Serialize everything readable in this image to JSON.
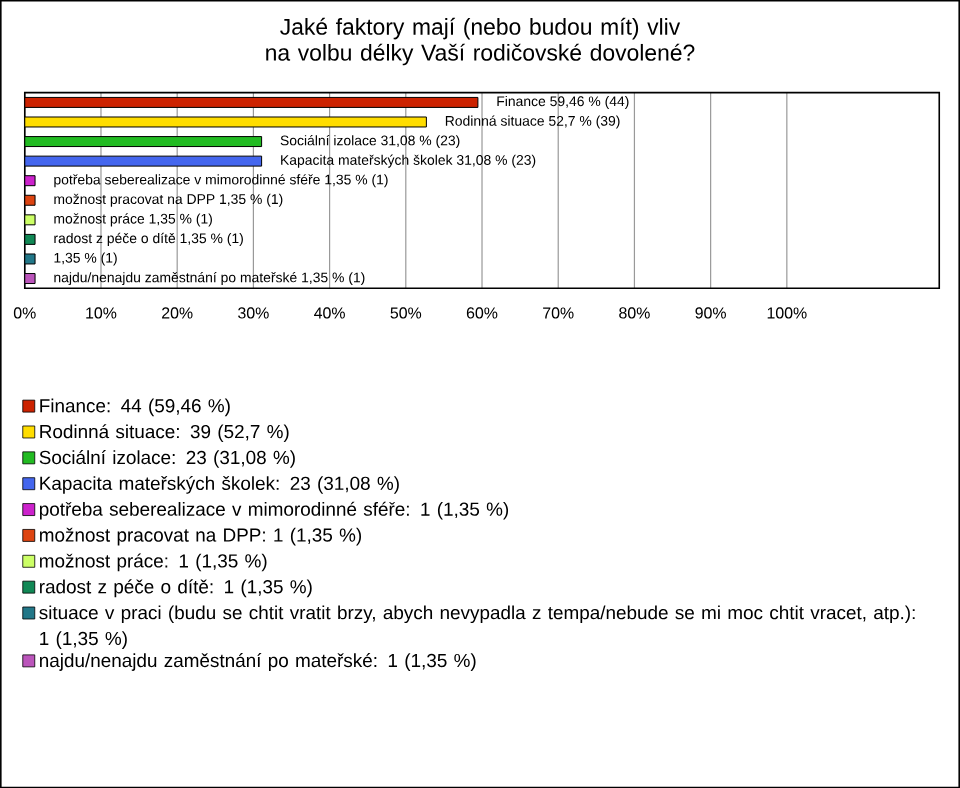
{
  "chart_data": {
    "type": "bar",
    "orientation": "horizontal",
    "title": "Jaké faktory mají (nebo budou mít) vliv na volbu délky Vaší rodičovské dovolené?",
    "categories": [
      null,
      null,
      null,
      null,
      null,
      null,
      null,
      null,
      null,
      null
    ],
    "series": [
      {
        "name": "Finance: 44 (59,46 %)",
        "color": "#cc2200",
        "values": [
          59.46,
          null,
          null,
          null,
          null,
          null,
          null,
          null,
          null,
          null
        ],
        "value_labels": [
          "Finance 59,46 % (44)",
          null,
          null,
          null,
          null,
          null,
          null,
          null,
          null,
          null
        ]
      },
      {
        "name": "Rodinná situace: 39 (52,7 %)",
        "color": "#ffdd00",
        "values": [
          null,
          52.7,
          null,
          null,
          null,
          null,
          null,
          null,
          null,
          null
        ],
        "value_labels": [
          null,
          "Rodinná situace 52,7 % (39)",
          null,
          null,
          null,
          null,
          null,
          null,
          null,
          null
        ]
      },
      {
        "name": "Sociální izolace: 23 (31,08 %)",
        "color": "#22bb22",
        "values": [
          null,
          null,
          31.08,
          null,
          null,
          null,
          null,
          null,
          null,
          null
        ],
        "value_labels": [
          null,
          null,
          "Sociální izolace 31,08 % (23)",
          null,
          null,
          null,
          null,
          null,
          null,
          null
        ]
      },
      {
        "name": "Kapacita mateřských školek: 23 (31,08 %)",
        "color": "#4466ee",
        "values": [
          null,
          null,
          null,
          31.08,
          null,
          null,
          null,
          null,
          null,
          null
        ],
        "value_labels": [
          null,
          null,
          null,
          "Kapacita mateřských školek 31,08 % (23)",
          null,
          null,
          null,
          null,
          null,
          null
        ]
      },
      {
        "name": "potřeba seberealizace v mimorodinné sféře: 1 (1,35 %)",
        "color": "#cc22cc",
        "values": [
          null,
          null,
          null,
          null,
          1.35,
          null,
          null,
          null,
          null,
          null
        ],
        "value_labels": [
          null,
          null,
          null,
          null,
          "potřeba seberealizace v mimorodinné sféře 1,35 % (1)",
          null,
          null,
          null,
          null,
          null
        ]
      },
      {
        "name": "možnost pracovat na DPP: 1 (1,35 %)",
        "color": "#dd4411",
        "values": [
          null,
          null,
          null,
          null,
          null,
          1.35,
          null,
          null,
          null,
          null
        ],
        "value_labels": [
          null,
          null,
          null,
          null,
          null,
          "možnost pracovat na DPP 1,35 % (1)",
          null,
          null,
          null,
          null
        ]
      },
      {
        "name": "možnost práce: 1 (1,35 %)",
        "color": "#ccff66",
        "values": [
          null,
          null,
          null,
          null,
          null,
          null,
          1.35,
          null,
          null,
          null
        ],
        "value_labels": [
          null,
          null,
          null,
          null,
          null,
          null,
          "možnost práce 1,35 % (1)",
          null,
          null,
          null
        ]
      },
      {
        "name": "radost z péče o dítě: 1 (1,35 %)",
        "color": "#118855",
        "values": [
          null,
          null,
          null,
          null,
          null,
          null,
          null,
          1.35,
          null,
          null
        ],
        "value_labels": [
          null,
          null,
          null,
          null,
          null,
          null,
          null,
          "radost z péče o dítě 1,35 % (1)",
          null,
          null
        ]
      },
      {
        "name": "situace v praci (budu se chtit vratit brzy, abych nevypadla z tempa/nebude se mi moc chtit vracet, atp.): 1 (1,35 %)",
        "color": "#227788",
        "values": [
          null,
          null,
          null,
          null,
          null,
          null,
          null,
          null,
          1.35,
          null
        ],
        "value_labels": [
          null,
          null,
          null,
          null,
          null,
          null,
          null,
          null,
          "1,35 % (1)",
          null
        ]
      },
      {
        "name": "najdu/nenajdu zaměstnání po mateřské: 1 (1,35 %)",
        "color": "#bb55bb",
        "values": [
          null,
          null,
          null,
          null,
          null,
          null,
          null,
          null,
          null,
          1.35
        ],
        "value_labels": [
          null,
          null,
          null,
          null,
          null,
          null,
          null,
          null,
          null,
          "najdu/nenajdu zaměstnání po mateřské 1,35 % (1)"
        ]
      }
    ],
    "xlim": [
      0,
      120
    ],
    "xticks": [
      {
        "value": 0,
        "label": "0%"
      },
      {
        "value": 10,
        "label": "10%"
      },
      {
        "value": 20,
        "label": "20%"
      },
      {
        "value": 30,
        "label": "30%"
      },
      {
        "value": 40,
        "label": "40%"
      },
      {
        "value": 50,
        "label": "50%"
      },
      {
        "value": 60,
        "label": "60%"
      },
      {
        "value": 70,
        "label": "70%"
      },
      {
        "value": 80,
        "label": "80%"
      },
      {
        "value": 90,
        "label": "90%"
      },
      {
        "value": 100,
        "label": "100%"
      }
    ],
    "grid": "x",
    "legend": "bottom"
  }
}
